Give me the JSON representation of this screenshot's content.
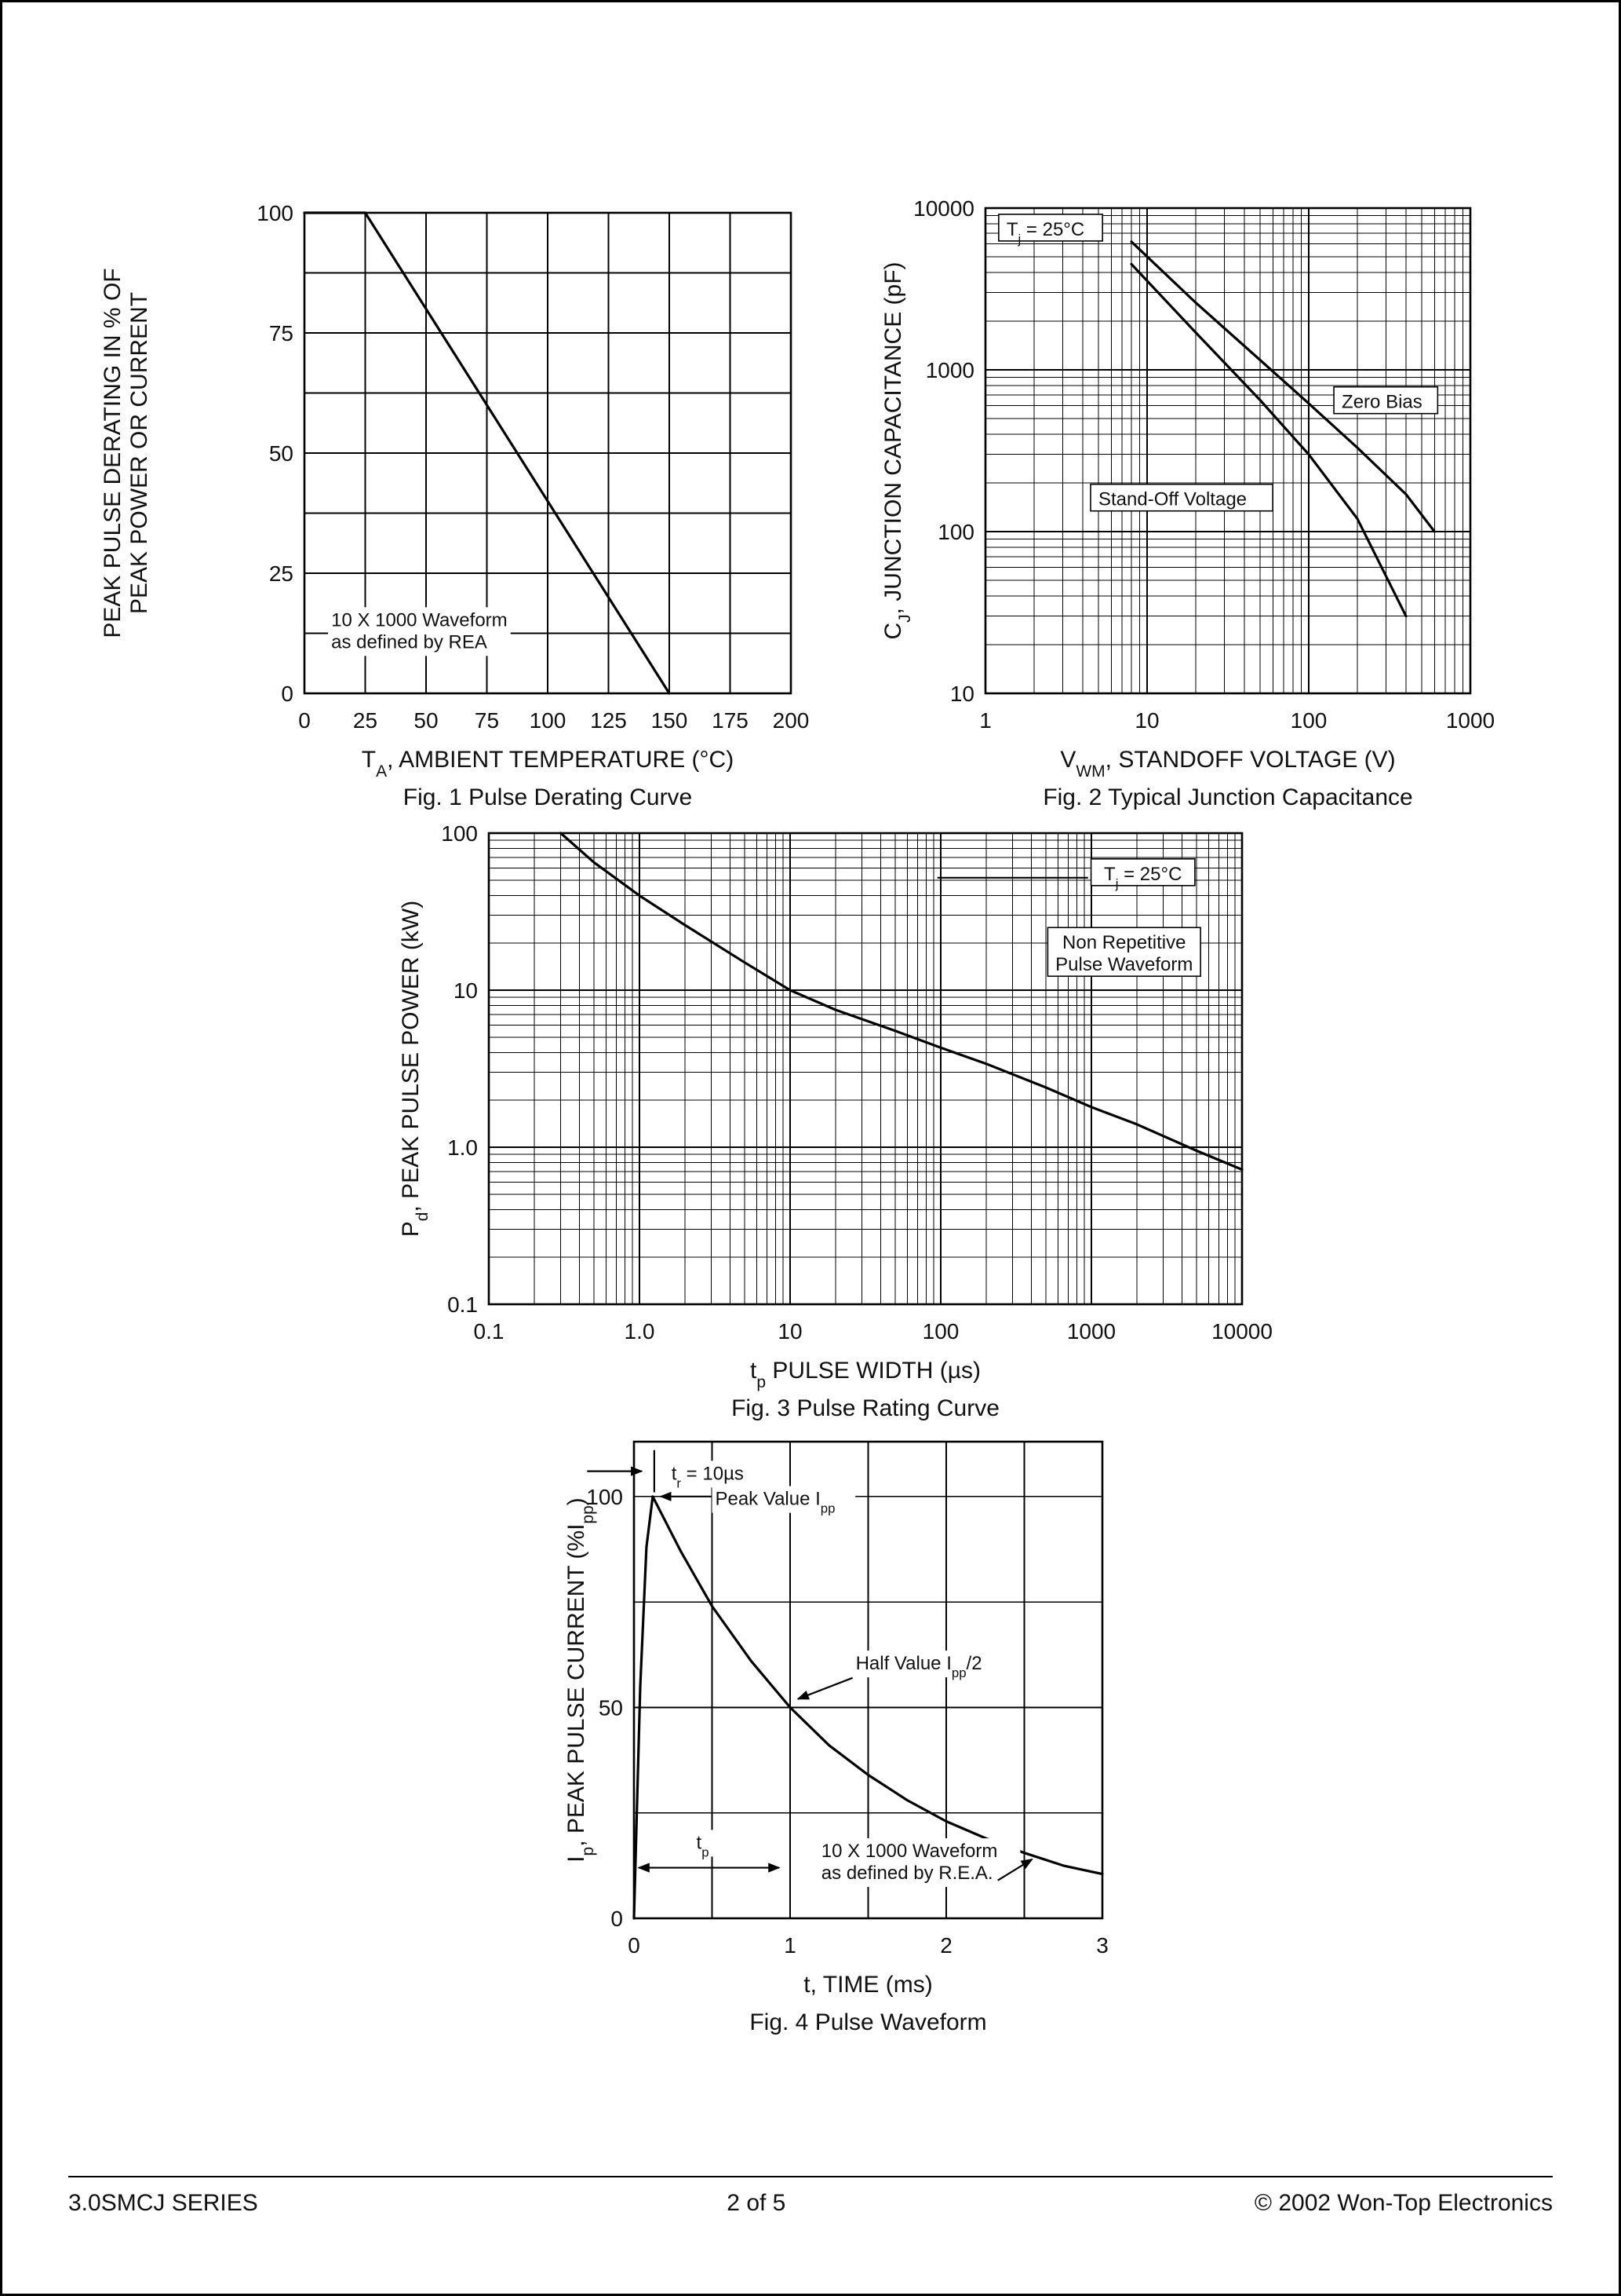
{
  "page": {
    "footer": {
      "left": "3.0SMCJ SERIES",
      "center": "2 of 5",
      "right": "© 2002 Won-Top Electronics"
    }
  },
  "chart_data": [
    {
      "id": "pulse-derating-chart",
      "type": "line",
      "caption": "Fig. 1 Pulse Derating Curve",
      "xlabel": "T_{A}, AMBIENT TEMPERATURE (°C)",
      "ylabel": "PEAK PULSE DERATING IN % OF\nPEAK POWER OR CURRENT",
      "x": {
        "scale": "linear",
        "min": 0,
        "max": 200,
        "grid_step": 25,
        "ticks": [
          "0",
          "25",
          "50",
          "75",
          "100",
          "125",
          "150",
          "175",
          "200"
        ]
      },
      "y": {
        "scale": "linear",
        "min": 0,
        "max": 100,
        "grid_step": 12.5,
        "ticks": [
          "0",
          "25",
          "50",
          "75",
          "100"
        ]
      },
      "series": [
        {
          "name": "derating-line",
          "points": [
            [
              0,
              100
            ],
            [
              25,
              100
            ],
            [
              150,
              0
            ]
          ]
        }
      ],
      "annotations": [
        {
          "text": "10 X 1000 Waveform\nas defined by REA",
          "x": 11,
          "y": 14,
          "anchor": "start",
          "bg": true
        }
      ]
    },
    {
      "id": "junction-capacitance-chart",
      "type": "line",
      "caption": "Fig. 2 Typical Junction Capacitance",
      "xlabel": "V_{WM}, STANDOFF VOLTAGE (V)",
      "ylabel": "C_{J}, JUNCTION CAPACITANCE (pF)",
      "x": {
        "scale": "log",
        "min": 1,
        "max": 1000,
        "ticks": [
          "1",
          "10",
          "100",
          "1000"
        ]
      },
      "y": {
        "scale": "log",
        "min": 10,
        "max": 10000,
        "ticks": [
          "10",
          "100",
          "1000",
          "10000"
        ]
      },
      "series": [
        {
          "name": "zero-bias-curve",
          "points": [
            [
              8,
              6200
            ],
            [
              20,
              2600
            ],
            [
              50,
              1150
            ],
            [
              100,
              620
            ],
            [
              200,
              330
            ],
            [
              400,
              170
            ],
            [
              600,
              100
            ]
          ]
        },
        {
          "name": "stand-off-voltage-curve",
          "points": [
            [
              8,
              4500
            ],
            [
              20,
              1700
            ],
            [
              50,
              650
            ],
            [
              100,
              300
            ],
            [
              200,
              120
            ],
            [
              400,
              30
            ]
          ]
        }
      ],
      "annotations": [
        {
          "text": "T_{j} = 25°C",
          "x": 1.35,
          "y": 7000,
          "anchor": "start",
          "box": true
        },
        {
          "text": "Zero Bias",
          "x": 160,
          "y": 600,
          "anchor": "start",
          "box": true
        },
        {
          "text": "Stand-Off Voltage",
          "x": 5,
          "y": 150,
          "anchor": "start",
          "box": true
        }
      ]
    },
    {
      "id": "pulse-rating-chart",
      "type": "line",
      "caption": "Fig. 3 Pulse Rating Curve",
      "xlabel": "t_{p} PULSE WIDTH (µs)",
      "ylabel": "P_{d}, PEAK PULSE POWER (kW)",
      "x": {
        "scale": "log",
        "min": 0.1,
        "max": 10000,
        "ticks": [
          "0.1",
          "1.0",
          "10",
          "100",
          "1000",
          "10000"
        ]
      },
      "y": {
        "scale": "log",
        "min": 0.1,
        "max": 100,
        "ticks": [
          "0.1",
          "1.0",
          "10",
          "100"
        ]
      },
      "series": [
        {
          "name": "pulse-power-curve",
          "points": [
            [
              0.3,
              100
            ],
            [
              0.5,
              65
            ],
            [
              1,
              40
            ],
            [
              2,
              26
            ],
            [
              5,
              15
            ],
            [
              10,
              10
            ],
            [
              20,
              7.5
            ],
            [
              50,
              5.5
            ],
            [
              100,
              4.3
            ],
            [
              200,
              3.4
            ],
            [
              500,
              2.4
            ],
            [
              1000,
              1.8
            ],
            [
              2000,
              1.4
            ],
            [
              5000,
              0.95
            ],
            [
              10000,
              0.72
            ]
          ]
        }
      ],
      "annotations": [
        {
          "type": "line",
          "from": [
            95,
            52
          ],
          "to": [
            950,
            52
          ]
        },
        {
          "text": "T_{j} = 25°C",
          "x": 2200,
          "y": 52,
          "anchor": "middle",
          "box": true
        },
        {
          "text": "Non Repetitive\nPulse Waveform",
          "x": 1650,
          "y": 19,
          "anchor": "middle",
          "box": true
        }
      ]
    },
    {
      "id": "pulse-waveform-chart",
      "type": "line",
      "caption": "Fig. 4 Pulse Waveform",
      "xlabel": "t, TIME (ms)",
      "ylabel": "I_{p}, PEAK PULSE CURRENT (%I_{pp})",
      "x": {
        "scale": "linear",
        "min": 0,
        "max": 3,
        "grid_step": 0.5,
        "ticks": [
          "0",
          "1",
          "2",
          "3"
        ]
      },
      "y": {
        "scale": "linear",
        "min": 0,
        "max": 113,
        "grid_step": 25,
        "ticks": [
          "0",
          "50",
          "100"
        ]
      },
      "series": [
        {
          "name": "pulse-waveform-curve",
          "points": [
            [
              0,
              0
            ],
            [
              0.04,
              55
            ],
            [
              0.08,
              88
            ],
            [
              0.12,
              100
            ],
            [
              0.3,
              87
            ],
            [
              0.5,
              74
            ],
            [
              0.75,
              61
            ],
            [
              1,
              50
            ],
            [
              1.25,
              41
            ],
            [
              1.5,
              34
            ],
            [
              1.75,
              28
            ],
            [
              2,
              23
            ],
            [
              2.25,
              19
            ],
            [
              2.5,
              15.5
            ],
            [
              2.75,
              12.5
            ],
            [
              3,
              10.5
            ]
          ]
        }
      ],
      "annotations": [
        {
          "type": "arrow",
          "from": [
            -0.3,
            106
          ],
          "to": [
            0.05,
            106
          ]
        },
        {
          "type": "line",
          "from": [
            0.13,
            101
          ],
          "to": [
            0.13,
            111
          ]
        },
        {
          "text": "t_{r} = 10µs",
          "x": 0.24,
          "y": 104,
          "anchor": "start",
          "bg": true
        },
        {
          "type": "arrow",
          "from": [
            0.5,
            100
          ],
          "to": [
            0.17,
            100
          ]
        },
        {
          "text": "Peak Value I_{pp}",
          "x": 0.52,
          "y": 98,
          "anchor": "start",
          "bg": true
        },
        {
          "type": "arrow",
          "from": [
            1.4,
            57
          ],
          "to": [
            1.05,
            52
          ]
        },
        {
          "text": "Half Value I_{pp}/2",
          "x": 1.42,
          "y": 59,
          "anchor": "start",
          "bg": true
        },
        {
          "type": "dim",
          "from": [
            0.03,
            12
          ],
          "to": [
            0.93,
            12
          ]
        },
        {
          "text": "t_{p}",
          "x": 0.44,
          "y": 16.5,
          "anchor": "middle",
          "bg": true
        },
        {
          "text": "10 X 1000 Waveform\nas defined by R.E.A.",
          "x": 1.2,
          "y": 14.5,
          "anchor": "start",
          "bg": true
        },
        {
          "type": "arrow",
          "from": [
            2.33,
            9
          ],
          "to": [
            2.55,
            14
          ]
        }
      ]
    }
  ]
}
